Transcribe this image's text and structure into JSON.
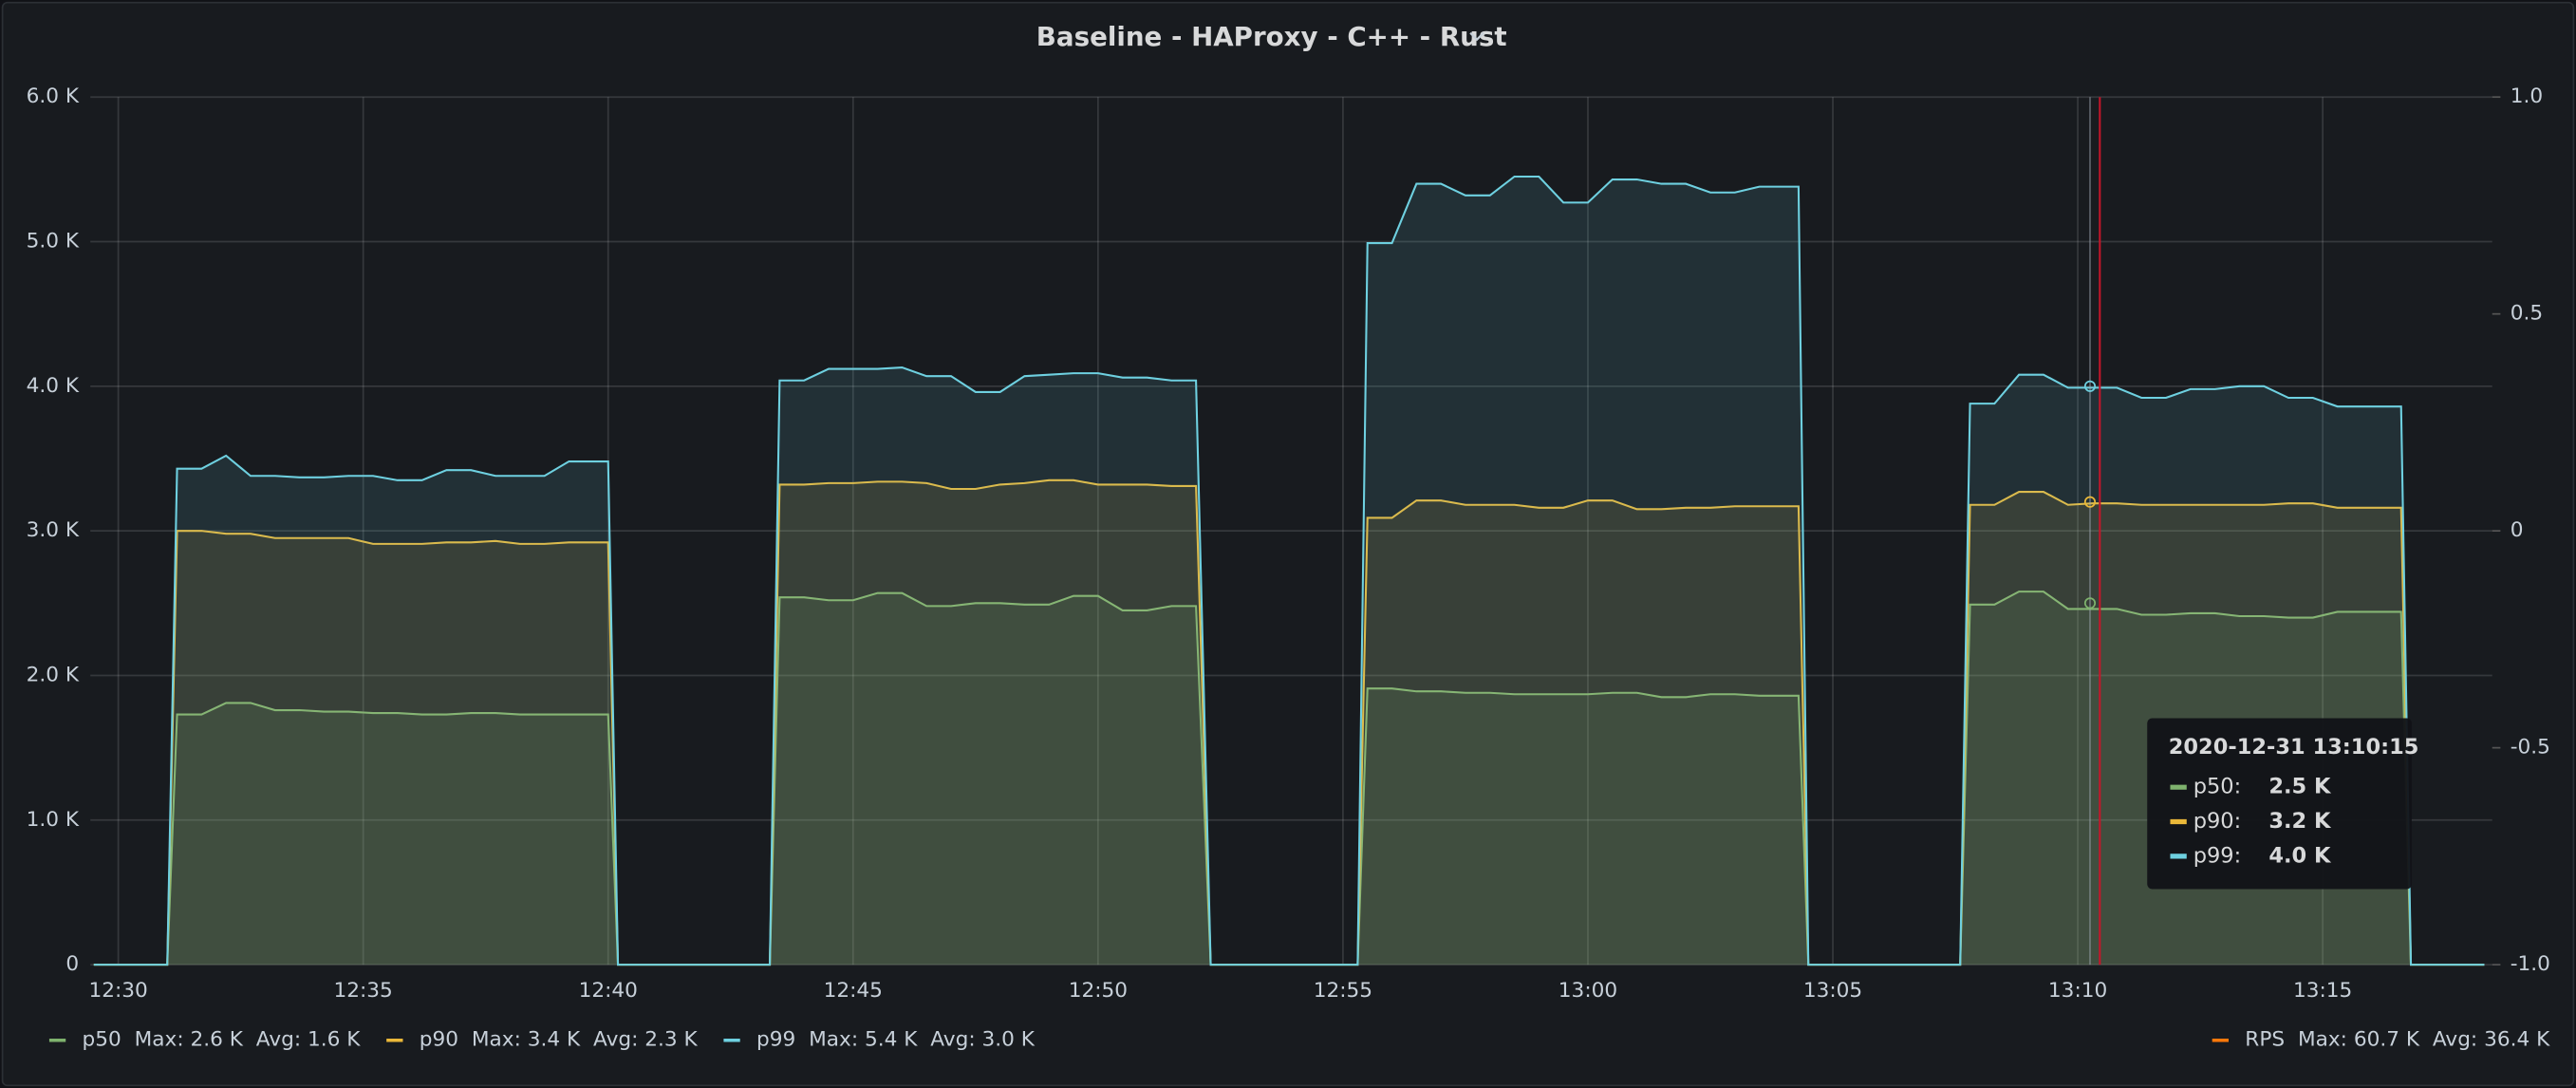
{
  "chart_data": {
    "type": "line",
    "title": "Baseline - HAProxy - C++ - Rust",
    "x": [
      749.5,
      751.0,
      751.2,
      751.7,
      752.2,
      752.7,
      753.2,
      753.7,
      754.2,
      754.7,
      755.2,
      755.7,
      756.2,
      756.7,
      757.2,
      757.7,
      758.2,
      758.7,
      759.2,
      759.7,
      760.0,
      760.2,
      763.3,
      763.5,
      764.0,
      764.5,
      765.0,
      765.5,
      766.0,
      766.5,
      767.0,
      767.5,
      768.0,
      768.5,
      769.0,
      769.5,
      770.0,
      770.5,
      771.0,
      771.5,
      772.0,
      772.3,
      775.3,
      775.5,
      776.0,
      776.5,
      777.0,
      777.5,
      778.0,
      778.5,
      779.0,
      779.5,
      780.0,
      780.5,
      781.0,
      781.5,
      782.0,
      782.5,
      783.0,
      783.5,
      784.3,
      784.5,
      787.6,
      787.8,
      788.3,
      788.8,
      789.3,
      789.8,
      790.3,
      790.8,
      791.3,
      791.8,
      792.3,
      792.8,
      793.3,
      793.8,
      794.3,
      794.8,
      795.3,
      795.8,
      796.6,
      796.8,
      798.3
    ],
    "series": [
      {
        "name": "p50",
        "color": "#7eb26d",
        "legend_max": "Max: 2.6 K",
        "legend_avg": "Avg: 1.6 K",
        "values": [
          0,
          0,
          1730,
          1730,
          1810,
          1810,
          1760,
          1760,
          1750,
          1750,
          1740,
          1740,
          1730,
          1730,
          1740,
          1740,
          1730,
          1730,
          1730,
          1730,
          1730,
          0,
          0,
          2540,
          2540,
          2520,
          2520,
          2570,
          2570,
          2480,
          2480,
          2500,
          2500,
          2490,
          2490,
          2550,
          2550,
          2450,
          2450,
          2480,
          2480,
          0,
          0,
          1910,
          1910,
          1890,
          1890,
          1880,
          1880,
          1870,
          1870,
          1870,
          1870,
          1880,
          1880,
          1850,
          1850,
          1870,
          1870,
          1860,
          1860,
          0,
          0,
          2490,
          2490,
          2580,
          2580,
          2460,
          2460,
          2460,
          2420,
          2420,
          2430,
          2430,
          2410,
          2410,
          2400,
          2400,
          2440,
          2440,
          2440,
          0,
          0
        ]
      },
      {
        "name": "p90",
        "color": "#eab839",
        "legend_max": "Max: 3.4 K",
        "legend_avg": "Avg: 2.3 K",
        "values": [
          0,
          0,
          3000,
          3000,
          2980,
          2980,
          2950,
          2950,
          2950,
          2950,
          2910,
          2910,
          2910,
          2920,
          2920,
          2930,
          2910,
          2910,
          2920,
          2920,
          2920,
          0,
          0,
          3320,
          3320,
          3330,
          3330,
          3340,
          3340,
          3330,
          3290,
          3290,
          3320,
          3330,
          3350,
          3350,
          3320,
          3320,
          3320,
          3310,
          3310,
          0,
          0,
          3090,
          3090,
          3210,
          3210,
          3180,
          3180,
          3180,
          3160,
          3160,
          3210,
          3210,
          3150,
          3150,
          3160,
          3160,
          3170,
          3170,
          3170,
          0,
          0,
          3180,
          3180,
          3270,
          3270,
          3180,
          3190,
          3190,
          3180,
          3180,
          3180,
          3180,
          3180,
          3180,
          3190,
          3190,
          3160,
          3160,
          3160,
          0,
          0
        ]
      },
      {
        "name": "p99",
        "color": "#6ed0e0",
        "legend_max": "Max: 5.4 K",
        "legend_avg": "Avg: 3.0 K",
        "values": [
          0,
          0,
          3430,
          3430,
          3520,
          3380,
          3380,
          3370,
          3370,
          3380,
          3380,
          3350,
          3350,
          3420,
          3420,
          3380,
          3380,
          3380,
          3480,
          3480,
          3480,
          0,
          0,
          4040,
          4040,
          4120,
          4120,
          4120,
          4130,
          4070,
          4070,
          3960,
          3960,
          4070,
          4080,
          4090,
          4090,
          4060,
          4060,
          4040,
          4040,
          0,
          0,
          4990,
          4990,
          5400,
          5400,
          5320,
          5320,
          5450,
          5450,
          5270,
          5270,
          5430,
          5430,
          5400,
          5400,
          5340,
          5340,
          5380,
          5380,
          0,
          0,
          3880,
          3880,
          4080,
          4080,
          3990,
          3990,
          3990,
          3920,
          3920,
          3980,
          3980,
          4000,
          4000,
          3920,
          3920,
          3860,
          3860,
          3860,
          0,
          0
        ]
      }
    ],
    "y2_legend": {
      "name": "RPS",
      "color": "#ff780a",
      "legend_max": "Max: 60.7 K",
      "legend_avg": "Avg: 36.4 K"
    },
    "xlim": [
      749.43,
      798.46
    ],
    "xticks": [
      {
        "value": 750,
        "label": "12:30"
      },
      {
        "value": 755,
        "label": "12:35"
      },
      {
        "value": 760,
        "label": "12:40"
      },
      {
        "value": 765,
        "label": "12:45"
      },
      {
        "value": 770,
        "label": "12:50"
      },
      {
        "value": 775,
        "label": "12:55"
      },
      {
        "value": 780,
        "label": "13:00"
      },
      {
        "value": 785,
        "label": "13:05"
      },
      {
        "value": 790,
        "label": "13:10"
      },
      {
        "value": 795,
        "label": "13:15"
      }
    ],
    "ylim": [
      0,
      6000
    ],
    "yticks": [
      0,
      {
        "value": 1000,
        "label": "1.0 K"
      },
      {
        "value": 2000,
        "label": "2.0 K"
      },
      {
        "value": 3000,
        "label": "3.0 K"
      },
      {
        "value": 4000,
        "label": "4.0 K"
      },
      {
        "value": 5000,
        "label": "5.0 K"
      },
      {
        "value": 6000,
        "label": "6.0 K"
      }
    ],
    "y2lim": [
      -1,
      1
    ],
    "y2ticks": [
      {
        "value": -1,
        "label": "-1.0"
      },
      -0.5,
      0,
      0.5,
      {
        "value": 1,
        "label": "1.0"
      }
    ],
    "grid": true,
    "annotations": [
      {
        "x": 790.45,
        "color": "#c4162a"
      }
    ],
    "tooltip": {
      "x": 790.25,
      "time": "2020-12-31 13:10:15",
      "rows": [
        {
          "name": "p50:",
          "color": "#7eb26d",
          "value": 2500,
          "value_label": "2.5 K"
        },
        {
          "name": "p90:",
          "color": "#eab839",
          "value": 3200,
          "value_label": "3.2 K"
        },
        {
          "name": "p99:",
          "color": "#6ed0e0",
          "value": 4000,
          "value_label": "4.0 K"
        }
      ]
    }
  }
}
